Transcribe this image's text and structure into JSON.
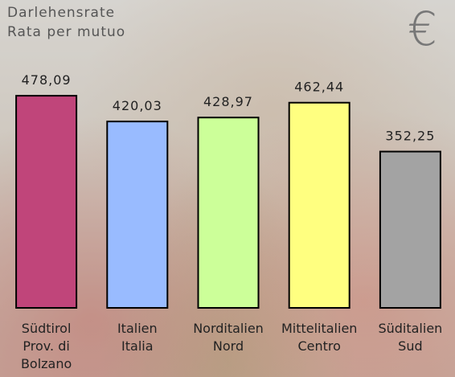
{
  "chart_data": {
    "type": "bar",
    "title": "Darlehensrate",
    "subtitle": "Rata per mutuo",
    "annotation": "€",
    "categories": [
      "Südtirol\nProv. di\nBolzano",
      "Italien\nItalia",
      "Norditalien\nNord",
      "Mittelitalien\nCentro",
      "Süditalien\nSud"
    ],
    "values": [
      478.09,
      420.03,
      428.97,
      462.44,
      352.25
    ],
    "value_labels": [
      "478,09",
      "420,03",
      "428,97",
      "462,44",
      "352,25"
    ],
    "colors": [
      "#c0457a",
      "#99bbff",
      "#ccff99",
      "#ffff80",
      "#a3a3a3"
    ],
    "ylim": [
      0,
      500
    ]
  }
}
